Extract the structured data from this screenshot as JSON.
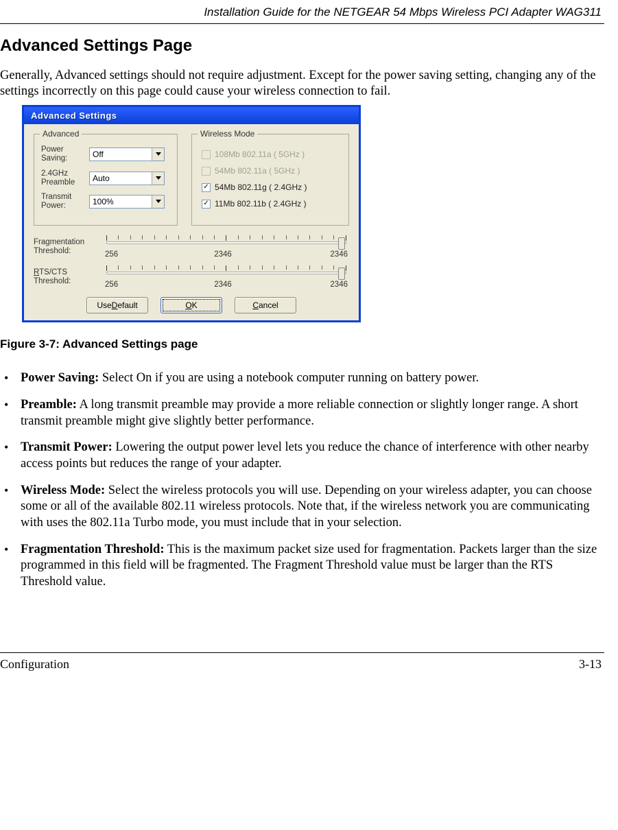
{
  "header": {
    "running_title": "Installation Guide for the NETGEAR 54 Mbps Wireless PCI Adapter WAG311"
  },
  "section": {
    "heading": "Advanced Settings Page",
    "intro": "Generally, Advanced settings should not require adjustment. Except for the power saving setting, changing any of the settings incorrectly on this page could cause your wireless connection to fail."
  },
  "figure": {
    "caption": "Figure 3-7:  Advanced Settings page"
  },
  "dialog": {
    "title": "Advanced Settings",
    "group_advanced": {
      "legend": "Advanced",
      "power_saving_label": "Power Saving:",
      "power_saving_value": "Off",
      "preamble_label": "2.4GHz Preamble",
      "preamble_value": "Auto",
      "transmit_power_label": "Transmit Power:",
      "transmit_power_value": "100%"
    },
    "group_wireless": {
      "legend": "Wireless Mode",
      "modes": [
        {
          "label": "108Mb 802.11a ( 5GHz )",
          "checked": false,
          "enabled": false
        },
        {
          "label": "54Mb 802.11a ( 5GHz )",
          "checked": false,
          "enabled": false
        },
        {
          "label": "54Mb 802.11g ( 2.4GHz )",
          "checked": true,
          "enabled": true
        },
        {
          "label": "11Mb 802.11b ( 2.4GHz )",
          "checked": true,
          "enabled": true
        }
      ]
    },
    "sliders": {
      "frag": {
        "label": "Fragmentation Threshold:",
        "min": "256",
        "mid": "2346",
        "max": "2346",
        "thumb_pct": 97
      },
      "rts": {
        "label_html_prefix": "R",
        "label_rest": "TS/CTS Threshold:",
        "min": "256",
        "mid": "2346",
        "max": "2346",
        "thumb_pct": 97
      }
    },
    "buttons": {
      "use_default_prefix": "Use ",
      "use_default_ul": "D",
      "use_default_suffix": "efault",
      "ok_ul": "O",
      "ok_suffix": "K",
      "cancel_ul": "C",
      "cancel_suffix": "ancel"
    }
  },
  "bullets": {
    "b1_label": "Power Saving:",
    "b1_text": " Select On if you are using a notebook computer running on battery power.",
    "b2_label": "Preamble:",
    "b2_text": " A long transmit preamble may provide a more reliable connection or slightly longer range.  A short transmit preamble might give slightly better performance.",
    "b3_label": "Transmit Power:",
    "b3_text": " Lowering the output power level lets you reduce the chance of interference with other nearby access points but reduces the range of your adapter.",
    "b4_label": "Wireless Mode:",
    "b4_text": " Select the wireless protocols you will use. Depending on your wireless adapter, you can choose some or all of the available 802.11 wireless protocols. Note that, if the wireless network you are communicating with uses the 802.11a Turbo mode, you must include that in your selection.",
    "b5_label": "Fragmentation Threshold:",
    "b5_text": " This is the maximum packet size used for fragmentation. Packets larger than the size programmed in this field will be fragmented. The Fragment Threshold value must be larger than the RTS Threshold value."
  },
  "footer": {
    "left": "Configuration",
    "right": "3-13"
  },
  "style": {
    "tick_count": 21
  }
}
